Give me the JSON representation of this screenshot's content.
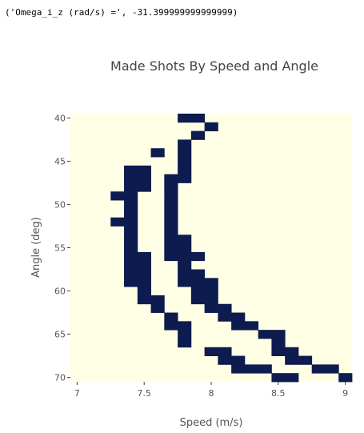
{
  "console": {
    "output_line": "('Omega_i_z (rad/s) =', -31.399999999999999)"
  },
  "colors": {
    "background": "#ffffe5",
    "made": "#0d1b4f",
    "text": "#555555",
    "title": "#444444"
  },
  "chart_data": {
    "type": "heatmap",
    "title": "Made Shots By Speed and Angle",
    "xlabel": "Speed (m/s)",
    "ylabel": "Angle (deg)",
    "x_ticks": [
      "7",
      "7.5",
      "8",
      "8.5",
      "9"
    ],
    "y_ticks": [
      "40",
      "45",
      "50",
      "55",
      "60",
      "65",
      "70"
    ],
    "x_range": [
      6.95,
      9.05
    ],
    "y_range": [
      39.5,
      70.5
    ],
    "cell_speed_step": 0.1,
    "cell_angle_step": 1,
    "legend": "none",
    "made_cells": [
      {
        "angle": 40,
        "speeds": [
          7.8,
          7.9
        ]
      },
      {
        "angle": 41,
        "speeds": [
          8.0
        ]
      },
      {
        "angle": 42,
        "speeds": [
          7.9
        ]
      },
      {
        "angle": 43,
        "speeds": [
          7.8
        ]
      },
      {
        "angle": 44,
        "speeds": [
          7.6,
          7.8
        ]
      },
      {
        "angle": 45,
        "speeds": [
          7.8
        ]
      },
      {
        "angle": 46,
        "speeds": [
          7.4,
          7.5,
          7.8
        ]
      },
      {
        "angle": 47,
        "speeds": [
          7.4,
          7.5,
          7.7,
          7.8
        ]
      },
      {
        "angle": 48,
        "speeds": [
          7.4,
          7.5,
          7.7
        ]
      },
      {
        "angle": 49,
        "speeds": [
          7.3,
          7.4,
          7.7
        ]
      },
      {
        "angle": 50,
        "speeds": [
          7.4,
          7.7
        ]
      },
      {
        "angle": 51,
        "speeds": [
          7.4,
          7.7
        ]
      },
      {
        "angle": 52,
        "speeds": [
          7.3,
          7.4,
          7.7
        ]
      },
      {
        "angle": 53,
        "speeds": [
          7.4,
          7.7
        ]
      },
      {
        "angle": 54,
        "speeds": [
          7.4,
          7.7,
          7.8
        ]
      },
      {
        "angle": 55,
        "speeds": [
          7.4,
          7.7,
          7.8
        ]
      },
      {
        "angle": 56,
        "speeds": [
          7.4,
          7.5,
          7.7,
          7.8,
          7.9
        ]
      },
      {
        "angle": 57,
        "speeds": [
          7.4,
          7.5,
          7.8
        ]
      },
      {
        "angle": 58,
        "speeds": [
          7.4,
          7.5,
          7.8,
          7.9
        ]
      },
      {
        "angle": 59,
        "speeds": [
          7.4,
          7.5,
          7.8,
          7.9,
          8.0
        ]
      },
      {
        "angle": 60,
        "speeds": [
          7.5,
          7.9,
          8.0
        ]
      },
      {
        "angle": 61,
        "speeds": [
          7.5,
          7.6,
          7.9,
          8.0
        ]
      },
      {
        "angle": 62,
        "speeds": [
          7.6,
          8.0,
          8.1
        ]
      },
      {
        "angle": 63,
        "speeds": [
          7.7,
          8.1,
          8.2
        ]
      },
      {
        "angle": 64,
        "speeds": [
          7.7,
          7.8,
          8.2,
          8.3
        ]
      },
      {
        "angle": 65,
        "speeds": [
          7.8,
          8.4,
          8.5
        ]
      },
      {
        "angle": 66,
        "speeds": [
          7.8,
          8.5
        ]
      },
      {
        "angle": 67,
        "speeds": [
          8.0,
          8.1,
          8.5,
          8.6
        ]
      },
      {
        "angle": 68,
        "speeds": [
          8.1,
          8.2,
          8.6,
          8.7
        ]
      },
      {
        "angle": 69,
        "speeds": [
          8.2,
          8.3,
          8.4,
          8.8,
          8.9
        ]
      },
      {
        "angle": 70,
        "speeds": [
          8.5,
          8.6,
          9.0
        ]
      }
    ]
  }
}
